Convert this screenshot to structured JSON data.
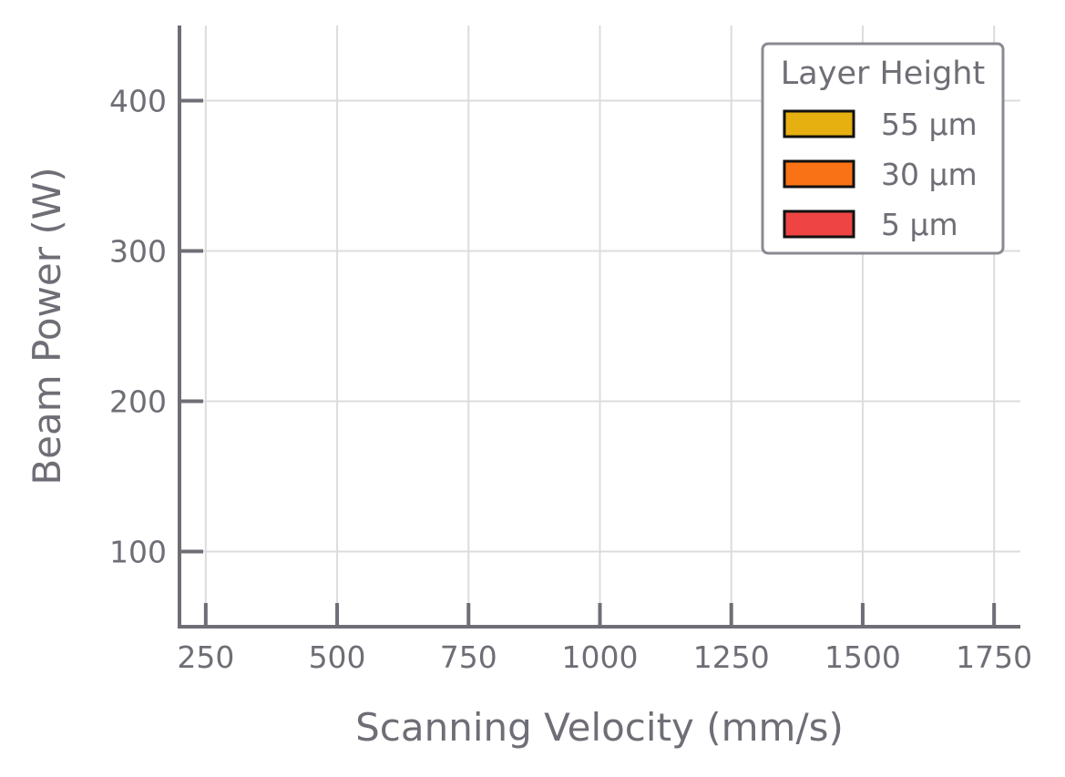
{
  "chart_data": {
    "type": "scatter",
    "title": "",
    "xlabel": "Scanning Velocity (mm/s)",
    "ylabel": "Beam Power (W)",
    "xlim": [
      200,
      1800
    ],
    "ylim": [
      50,
      450
    ],
    "xticks": [
      250,
      500,
      750,
      1000,
      1250,
      1500,
      1750
    ],
    "yticks": [
      100,
      200,
      300,
      400
    ],
    "xtick_labels": [
      "250",
      "500",
      "750",
      "1000",
      "1250",
      "1500",
      "1750"
    ],
    "ytick_labels": [
      "100",
      "200",
      "300",
      "400"
    ],
    "grid": true,
    "legend": {
      "title": "Layer Height",
      "placement": "top-right",
      "entries": [
        {
          "label": "55 µm",
          "color": "#e6b010"
        },
        {
          "label": "30 µm",
          "color": "#f97316"
        },
        {
          "label": "5 µm",
          "color": "#ef4444"
        }
      ]
    },
    "series": []
  },
  "colors": {
    "axis": "#6e6e76",
    "grid": "#dcdcdc",
    "text": "#6e6e76"
  }
}
